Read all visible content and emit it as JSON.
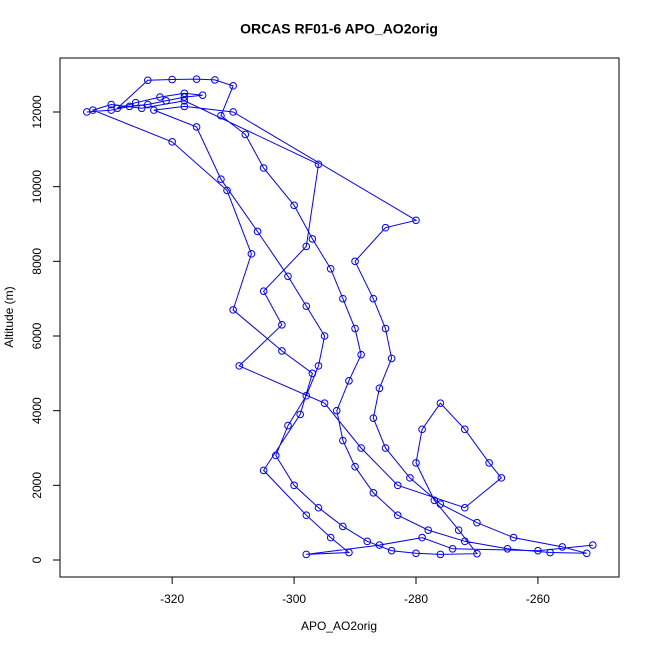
{
  "chart_data": {
    "type": "line",
    "markers": true,
    "title": "ORCAS RF01-6 APO_AO2orig",
    "xlabel": "APO_AO2orig",
    "ylabel": "Altitude (m)",
    "color": "#0000ff",
    "xlim": [
      -338.4,
      -246.7
    ],
    "ylim": [
      -455,
      13446
    ],
    "xticks": [
      -320,
      -300,
      -280,
      -260
    ],
    "yticks": [
      0,
      2000,
      4000,
      6000,
      8000,
      10000,
      12000
    ],
    "x": [
      -334,
      -330,
      -327,
      -324,
      -321,
      -318,
      -315,
      -318,
      -322,
      -326,
      -329,
      -324,
      -320,
      -316,
      -313,
      -310,
      -312,
      -308,
      -305,
      -300,
      -297,
      -294,
      -292,
      -290,
      -289,
      -291,
      -293,
      -292,
      -290,
      -287,
      -283,
      -278,
      -272,
      -265,
      -258,
      -252,
      -256,
      -264,
      -270,
      -276,
      -281,
      -285,
      -287,
      -286,
      -284,
      -285,
      -287,
      -290,
      -285,
      -280,
      -310,
      -318,
      -323,
      -316,
      -312,
      -306,
      -301,
      -298,
      -295,
      -296,
      -298,
      -301,
      -303,
      -300,
      -296,
      -292,
      -288,
      -284,
      -280,
      -276,
      -270,
      -273,
      -277,
      -280,
      -279,
      -276,
      -272,
      -268,
      -266,
      -272,
      -283,
      -289,
      -295,
      -309,
      -302,
      -305,
      -298,
      -296,
      -318,
      -325,
      -330,
      -333,
      -320,
      -311,
      -307,
      -310,
      -302,
      -297,
      -299,
      -305,
      -298,
      -294,
      -291,
      -298,
      -286,
      -279,
      -274,
      -260,
      -251
    ],
    "values": [
      12000,
      12050,
      12150,
      12200,
      12300,
      12400,
      12450,
      12500,
      12400,
      12250,
      12100,
      12850,
      12870,
      12880,
      12860,
      12700,
      11900,
      11400,
      10500,
      9500,
      8600,
      7800,
      7000,
      6200,
      5500,
      4800,
      4000,
      3200,
      2500,
      1800,
      1200,
      800,
      500,
      300,
      200,
      180,
      350,
      600,
      1000,
      1500,
      2200,
      3000,
      3800,
      4600,
      5400,
      6200,
      7000,
      8000,
      8900,
      9100,
      12000,
      12150,
      12050,
      11600,
      10200,
      8800,
      7600,
      6800,
      6000,
      5200,
      4400,
      3600,
      2800,
      2000,
      1400,
      900,
      500,
      250,
      180,
      150,
      170,
      800,
      1600,
      2600,
      3500,
      4200,
      3500,
      2600,
      2200,
      1400,
      2000,
      3000,
      4200,
      5200,
      6300,
      7200,
      8400,
      10600,
      12300,
      12100,
      12200,
      12050,
      11200,
      9900,
      8200,
      6700,
      5600,
      5000,
      3900,
      2400,
      1200,
      600,
      200,
      150,
      400,
      600,
      300,
      250,
      400
    ]
  }
}
